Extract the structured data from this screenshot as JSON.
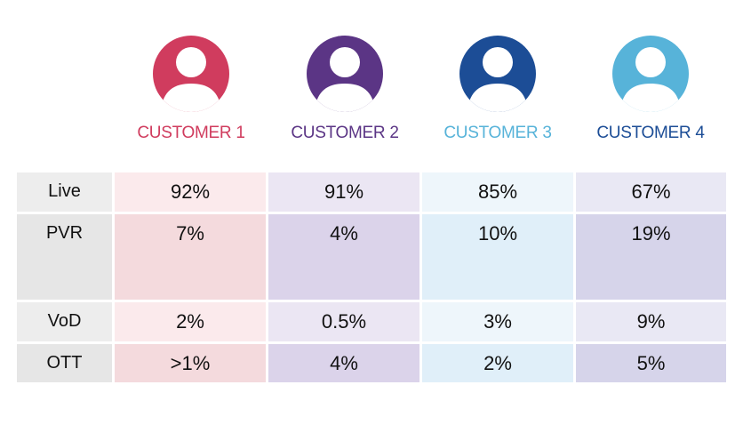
{
  "chart_data": {
    "type": "table",
    "colors": {
      "customer_1": "#d03c5e",
      "customer_2": "#5b3585",
      "customer_3": "#57b3d9",
      "customer_4": "#1c4d96"
    },
    "customers": [
      {
        "label": "CUSTOMER 1",
        "icon": "user-avatar-icon"
      },
      {
        "label": "CUSTOMER 2",
        "icon": "user-avatar-icon"
      },
      {
        "label": "CUSTOMER 3",
        "icon": "user-avatar-icon"
      },
      {
        "label": "CUSTOMER 4",
        "icon": "user-avatar-icon"
      }
    ],
    "rows": [
      {
        "label": "Live",
        "values": [
          "92%",
          "91%",
          "85%",
          "67%"
        ]
      },
      {
        "label": "PVR",
        "values": [
          "7%",
          "4%",
          "10%",
          "19%"
        ]
      },
      {
        "label": "VoD",
        "values": [
          "2%",
          "0.5%",
          "3%",
          "9%"
        ]
      },
      {
        "label": "OTT",
        "values": [
          ">1%",
          "4%",
          "2%",
          "5%"
        ]
      }
    ]
  }
}
